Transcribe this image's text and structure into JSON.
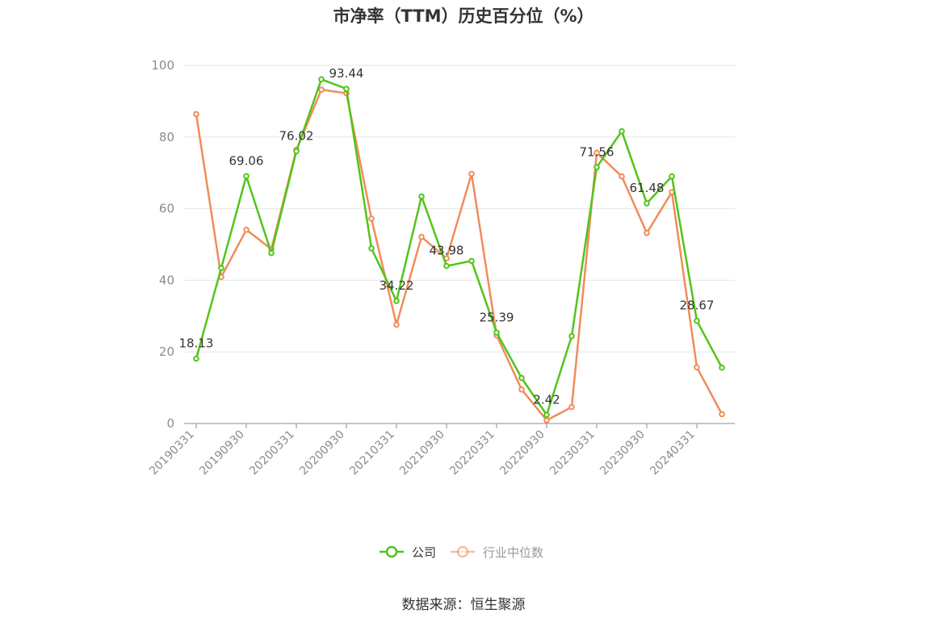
{
  "title": "市净率（TTM）历史百分位（%）",
  "source": "数据来源：恒生聚源",
  "colors": {
    "company": "#52c41a",
    "industry": "#f08c5a",
    "grid": "#e6e6e6",
    "axis": "#8c8c8c"
  },
  "chart_data": {
    "type": "line",
    "ylim": [
      0,
      100
    ],
    "yticks": [
      0,
      20,
      40,
      60,
      80,
      100
    ],
    "x": [
      "20190331",
      "20190630",
      "20190930",
      "20191231",
      "20200331",
      "20200630",
      "20200930",
      "20201231",
      "20210331",
      "20210630",
      "20210930",
      "20211231",
      "20220331",
      "20220630",
      "20220930",
      "20221231",
      "20230331",
      "20230630",
      "20230930",
      "20231231",
      "20240331",
      "20240630"
    ],
    "xtick_labels": [
      "20190331",
      "20190930",
      "20200331",
      "20200930",
      "20210331",
      "20210930",
      "20220331",
      "20220930",
      "20230331",
      "20230930",
      "20240331"
    ],
    "series": [
      {
        "name": "公司",
        "values": [
          18.13,
          43.4,
          69.06,
          47.6,
          76.02,
          96.1,
          93.44,
          48.9,
          34.22,
          63.4,
          43.98,
          45.4,
          25.39,
          12.7,
          2.42,
          24.4,
          71.56,
          81.6,
          61.48,
          69.0,
          28.67,
          15.6
        ]
      },
      {
        "name": "行业中位数",
        "values": [
          86.4,
          40.9,
          54.1,
          48.7,
          76.4,
          93.2,
          92.2,
          57.2,
          27.6,
          52.1,
          46.1,
          69.7,
          24.6,
          9.5,
          0.9,
          4.6,
          75.6,
          69.0,
          53.2,
          64.6,
          15.7,
          2.6
        ]
      }
    ],
    "data_labels": [
      {
        "index": 0,
        "text": "18.13"
      },
      {
        "index": 2,
        "text": "69.06"
      },
      {
        "index": 4,
        "text": "76.02"
      },
      {
        "index": 6,
        "text": "93.44"
      },
      {
        "index": 8,
        "text": "34.22"
      },
      {
        "index": 10,
        "text": "43.98"
      },
      {
        "index": 12,
        "text": "25.39"
      },
      {
        "index": 14,
        "text": "2.42"
      },
      {
        "index": 16,
        "text": "71.56"
      },
      {
        "index": 18,
        "text": "61.48"
      },
      {
        "index": 20,
        "text": "28.67"
      }
    ]
  },
  "legend": [
    {
      "label": "公司"
    },
    {
      "label": "行业中位数"
    }
  ]
}
